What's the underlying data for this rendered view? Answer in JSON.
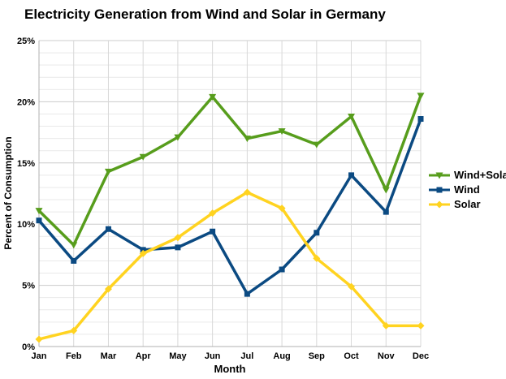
{
  "chart_data": {
    "type": "line",
    "title": "Electricity Generation from Wind and Solar in Germany",
    "xlabel": "Month",
    "ylabel": "Percent of Consumption",
    "ylim": [
      0,
      25
    ],
    "y_major_step": 5,
    "y_minor_step": 1,
    "y_tick_labels": [
      "0%",
      "5%",
      "10%",
      "15%",
      "20%",
      "25%"
    ],
    "grid": true,
    "legend_position": "right",
    "categories": [
      "Jan",
      "Feb",
      "Mar",
      "Apr",
      "May",
      "Jun",
      "Jul",
      "Aug",
      "Sep",
      "Oct",
      "Nov",
      "Dec"
    ],
    "series": [
      {
        "name": "Wind+Solar",
        "color": "#579d1c",
        "marker": "triangle-down",
        "values": [
          11.1,
          8.3,
          14.3,
          15.5,
          17.1,
          20.4,
          17.0,
          17.6,
          16.5,
          18.8,
          12.8,
          20.5
        ]
      },
      {
        "name": "Wind",
        "color": "#0b4a82",
        "marker": "square",
        "values": [
          10.3,
          7.0,
          9.6,
          7.9,
          8.1,
          9.4,
          4.3,
          6.3,
          9.3,
          14.0,
          11.0,
          18.6
        ]
      },
      {
        "name": "Solar",
        "color": "#ffd320",
        "marker": "diamond",
        "values": [
          0.6,
          1.3,
          4.7,
          7.6,
          8.9,
          10.9,
          12.6,
          11.3,
          7.2,
          4.9,
          1.7,
          1.7
        ]
      }
    ],
    "grid_colors": {
      "minor_h": "#e9e9e9",
      "major_h": "#cccccc",
      "vertical": "#d8d8d8",
      "axis": "#b0b0b0"
    }
  }
}
